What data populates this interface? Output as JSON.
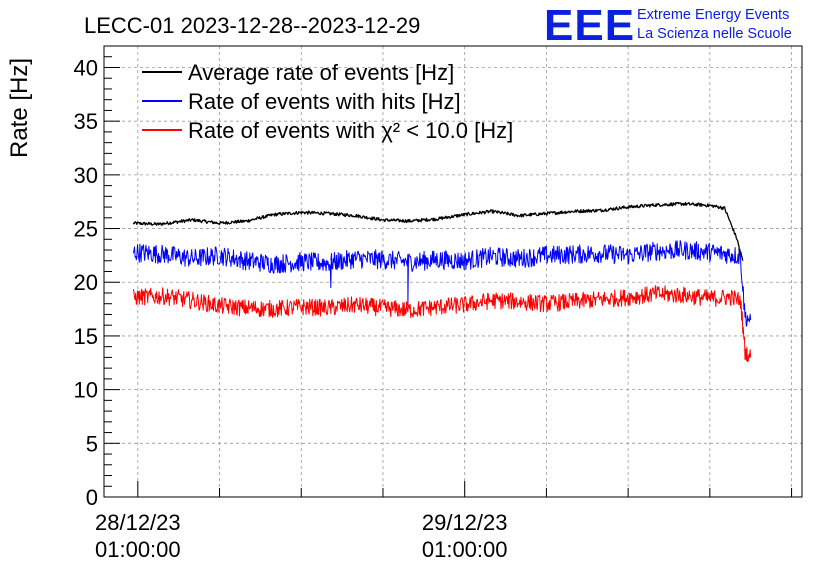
{
  "chart_data": {
    "type": "line",
    "title": "LECC-01 2023-12-28--2023-12-29",
    "ylabel": "Rate [Hz]",
    "xlabel": "",
    "x_axis_kind": "datetime",
    "xlim": [
      "2023-12-27 22:31:00",
      "2023-12-30 01:46:00"
    ],
    "ylim": [
      0,
      42
    ],
    "y_ticks": [
      0,
      5,
      10,
      15,
      20,
      25,
      30,
      35,
      40
    ],
    "x_tick_labels": [
      {
        "x": "2023-12-28 01:00:00",
        "date": "28/12/23",
        "time": "01:00:00"
      },
      {
        "x": "2023-12-29 01:00:00",
        "date": "29/12/23",
        "time": "01:00:00"
      }
    ],
    "grid": true,
    "legend_position": "top-left",
    "legend": [
      {
        "name": "Average rate of events [Hz]",
        "color": "#000000"
      },
      {
        "name": "Rate of events with hits [Hz]",
        "color": "#0000ff"
      },
      {
        "name": "Rate of events with χ² < 10.0 [Hz]",
        "color": "#ff0000"
      }
    ],
    "series": [
      {
        "name": "Average rate of events [Hz]",
        "color": "#000000",
        "noise": 0.15,
        "x": [
          "2023-12-28 00:40:00",
          "2023-12-28 02:30:00",
          "2023-12-28 05:00:00",
          "2023-12-28 07:00:00",
          "2023-12-28 09:00:00",
          "2023-12-28 11:00:00",
          "2023-12-28 13:00:00",
          "2023-12-28 15:00:00",
          "2023-12-28 17:00:00",
          "2023-12-28 19:00:00",
          "2023-12-28 21:00:00",
          "2023-12-28 23:00:00",
          "2023-12-29 01:00:00",
          "2023-12-29 03:00:00",
          "2023-12-29 05:00:00",
          "2023-12-29 07:00:00",
          "2023-12-29 09:00:00",
          "2023-12-29 11:00:00",
          "2023-12-29 13:00:00",
          "2023-12-29 15:00:00",
          "2023-12-29 17:00:00",
          "2023-12-29 18:30:00",
          "2023-12-29 19:15:00",
          "2023-12-29 20:05:00",
          "2023-12-29 21:00:00",
          "2023-12-29 21:25:00"
        ],
        "y": [
          25.5,
          25.4,
          25.8,
          25.5,
          25.7,
          26.3,
          26.5,
          26.4,
          26.2,
          25.8,
          25.7,
          25.9,
          26.3,
          26.6,
          26.2,
          26.4,
          26.6,
          26.7,
          27.0,
          27.2,
          27.3,
          27.2,
          27.1,
          26.9,
          24.0,
          22.0
        ]
      },
      {
        "name": "Rate of events with hits [Hz]",
        "color": "#0000ff",
        "noise": 0.9,
        "x": [
          "2023-12-28 00:40:00",
          "2023-12-28 03:00:00",
          "2023-12-28 05:00:00",
          "2023-12-28 07:00:00",
          "2023-12-28 09:00:00",
          "2023-12-28 11:00:00",
          "2023-12-28 13:00:00",
          "2023-12-28 15:00:00",
          "2023-12-28 17:00:00",
          "2023-12-28 19:00:00",
          "2023-12-28 21:00:00",
          "2023-12-28 23:00:00",
          "2023-12-29 01:00:00",
          "2023-12-29 03:00:00",
          "2023-12-29 05:00:00",
          "2023-12-29 07:00:00",
          "2023-12-29 09:00:00",
          "2023-12-29 11:00:00",
          "2023-12-29 13:00:00",
          "2023-12-29 15:00:00",
          "2023-12-29 17:00:00",
          "2023-12-29 19:00:00",
          "2023-12-29 20:30:00",
          "2023-12-29 21:15:00",
          "2023-12-29 21:35:00",
          "2023-12-29 22:00:00"
        ],
        "y": [
          22.8,
          22.6,
          22.2,
          22.5,
          22.0,
          21.7,
          21.9,
          21.8,
          22.2,
          22.1,
          21.9,
          22.1,
          22.0,
          22.4,
          22.2,
          22.5,
          22.6,
          22.7,
          22.5,
          22.9,
          23.0,
          22.8,
          22.6,
          22.4,
          16.8,
          16.5
        ]
      },
      {
        "name": "Rate of events with χ² < 10.0 [Hz]",
        "color": "#ff0000",
        "noise": 0.8,
        "x": [
          "2023-12-28 00:40:00",
          "2023-12-28 03:00:00",
          "2023-12-28 05:00:00",
          "2023-12-28 07:00:00",
          "2023-12-28 09:00:00",
          "2023-12-28 11:00:00",
          "2023-12-28 13:00:00",
          "2023-12-28 15:00:00",
          "2023-12-28 17:00:00",
          "2023-12-28 19:00:00",
          "2023-12-28 21:00:00",
          "2023-12-28 23:00:00",
          "2023-12-29 01:00:00",
          "2023-12-29 03:00:00",
          "2023-12-29 05:00:00",
          "2023-12-29 07:00:00",
          "2023-12-29 09:00:00",
          "2023-12-29 11:00:00",
          "2023-12-29 13:00:00",
          "2023-12-29 15:00:00",
          "2023-12-29 17:00:00",
          "2023-12-29 19:00:00",
          "2023-12-29 20:30:00",
          "2023-12-29 21:15:00",
          "2023-12-29 21:35:00",
          "2023-12-29 22:00:00"
        ],
        "y": [
          18.6,
          18.7,
          18.3,
          17.8,
          17.6,
          17.5,
          17.7,
          17.6,
          17.9,
          17.6,
          17.4,
          17.7,
          17.9,
          18.3,
          18.2,
          18.0,
          18.2,
          18.4,
          18.6,
          18.9,
          18.8,
          18.5,
          18.6,
          18.3,
          13.6,
          13.0
        ]
      }
    ],
    "dips": [
      {
        "series": 1,
        "x": "2023-12-28 15:10:00",
        "y": 19.5
      },
      {
        "series": 1,
        "x": "2023-12-28 20:50:00",
        "y": 17.9
      },
      {
        "series": 0,
        "x": "2023-12-29 21:10:00",
        "y": 22.5
      }
    ]
  },
  "logo": {
    "text": "EEE",
    "color": "#0a1fe0",
    "line1": "Extreme Energy Events",
    "line2": "La Scienza nelle Scuole"
  }
}
